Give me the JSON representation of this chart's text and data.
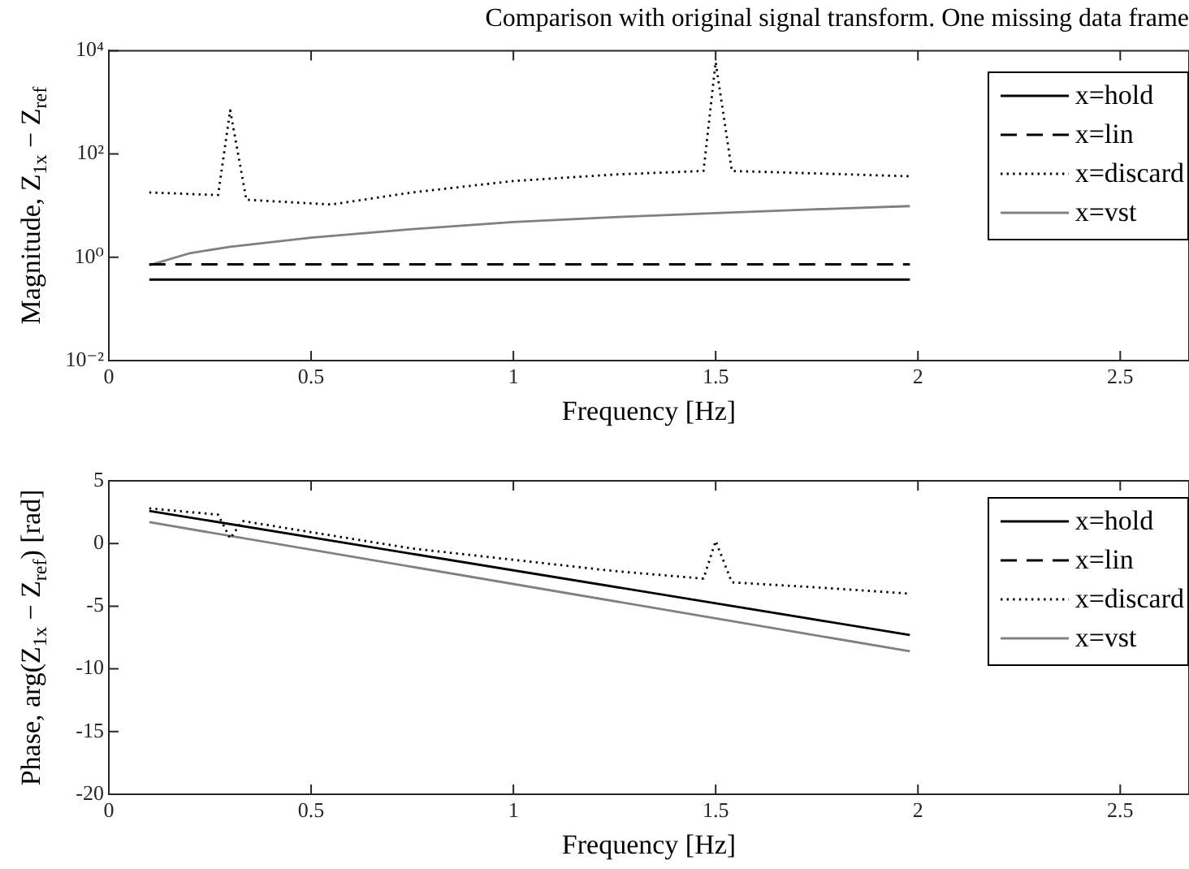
{
  "chart_data": [
    {
      "type": "line",
      "title": "Comparison with original signal transform. One missing data frame",
      "xlabel": "Frequency [Hz]",
      "ylabel": "Magnitude, Z$_{1x}$ − Z$_{ref}$",
      "log": "y",
      "grid": false,
      "legend": "top right",
      "marker": "none",
      "xlim": [
        0,
        2.67
      ],
      "xticks": [
        0,
        0.5,
        1,
        1.5,
        2,
        2.5
      ],
      "ylim": [
        0.01,
        10000
      ],
      "yticks": [
        {
          "value": 0.01,
          "label": "10⁻²"
        },
        {
          "value": 1,
          "label": "10⁰"
        },
        {
          "value": 100,
          "label": "10²"
        },
        {
          "value": 10000,
          "label": "10⁴"
        }
      ],
      "series": [
        {
          "name": "x=hold",
          "color": "#000000",
          "line_style": "solid",
          "x": [
            0.1,
            1.98
          ],
          "values": [
            0.37,
            0.37
          ]
        },
        {
          "name": "x=lin",
          "color": "#000000",
          "line_style": "dashed",
          "x": [
            0.1,
            1.98
          ],
          "values": [
            0.73,
            0.73
          ]
        },
        {
          "name": "x=discard",
          "color": "#000000",
          "line_style": "dotted",
          "x": [
            0.1,
            0.27,
            0.3,
            0.34,
            0.55,
            0.75,
            1.0,
            1.25,
            1.47,
            1.5,
            1.54,
            1.75,
            1.98
          ],
          "values": [
            18,
            16,
            700,
            13,
            10.5,
            18,
            30,
            40,
            47,
            6000,
            47,
            42,
            37
          ]
        },
        {
          "name": "x=vst",
          "color": "#808080",
          "line_style": "solid",
          "x": [
            0.1,
            0.2,
            0.3,
            0.5,
            0.75,
            1.0,
            1.25,
            1.5,
            1.75,
            1.98
          ],
          "values": [
            0.7,
            1.2,
            1.6,
            2.4,
            3.5,
            4.8,
            6,
            7.2,
            8.5,
            9.8
          ]
        }
      ]
    },
    {
      "type": "line",
      "xlabel": "Frequency [Hz]",
      "ylabel": "Phase, arg(Z$_{1x}$ − Z$_{ref}$) [rad]",
      "grid": false,
      "legend": "top right",
      "marker": "none",
      "xlim": [
        0,
        2.67
      ],
      "xticks": [
        0,
        0.5,
        1,
        1.5,
        2,
        2.5
      ],
      "ylim": [
        -20,
        5
      ],
      "yticks": [
        -20,
        -15,
        -10,
        -5,
        0,
        5
      ],
      "series": [
        {
          "name": "x=hold",
          "color": "#000000",
          "line_style": "solid",
          "x": [
            0.1,
            1.98
          ],
          "values": [
            2.6,
            -7.3
          ]
        },
        {
          "name": "x=lin",
          "color": "#000000",
          "line_style": "dashed"
        },
        {
          "name": "x=discard",
          "color": "#000000",
          "line_style": "dotted",
          "x": [
            0.1,
            0.27,
            0.3,
            0.33,
            0.5,
            0.75,
            1.0,
            1.25,
            1.47,
            1.5,
            1.54,
            1.75,
            1.98
          ],
          "values": [
            2.8,
            2.3,
            0.4,
            1.8,
            0.9,
            -0.4,
            -1.3,
            -2.2,
            -2.8,
            0.2,
            -3.1,
            -3.5,
            -4.0
          ]
        },
        {
          "name": "x=vst",
          "color": "#808080",
          "line_style": "solid",
          "x": [
            0.1,
            1.98
          ],
          "values": [
            1.7,
            -8.6
          ]
        }
      ]
    }
  ]
}
